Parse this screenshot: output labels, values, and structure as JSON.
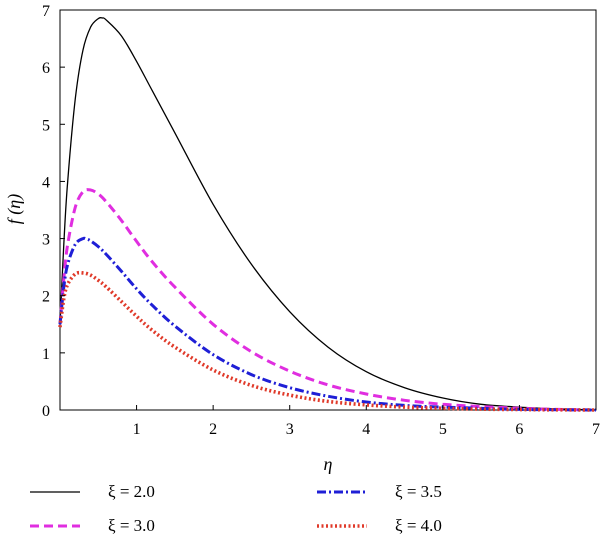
{
  "chart_data": {
    "type": "line",
    "title": "",
    "xlabel": "η",
    "ylabel": "f (η)",
    "xlim": [
      0,
      7
    ],
    "ylim": [
      0,
      7
    ],
    "xticks": [
      1,
      2,
      3,
      4,
      5,
      6,
      7
    ],
    "xtick_labels": [
      "1",
      "2",
      "3",
      "4",
      "5",
      "6",
      "7"
    ],
    "yticks": [
      0,
      1,
      2,
      3,
      4,
      5,
      6,
      7
    ],
    "ytick_labels": [
      "0",
      "1",
      "2",
      "3",
      "4",
      "5",
      "6",
      "7"
    ],
    "grid": false,
    "legend_position": "bottom",
    "series": [
      {
        "name": "ξ = 2.0",
        "color": "#000000",
        "style": "solid",
        "x": [
          0.0,
          0.05,
          0.1,
          0.2,
          0.3,
          0.4,
          0.5,
          0.55,
          0.6,
          0.8,
          1.0,
          1.2,
          1.5,
          2.0,
          2.5,
          3.0,
          3.5,
          4.0,
          4.5,
          5.0,
          5.5,
          6.0,
          6.5,
          7.0
        ],
        "y": [
          1.5,
          2.9,
          4.0,
          5.45,
          6.3,
          6.7,
          6.85,
          6.86,
          6.83,
          6.55,
          6.1,
          5.6,
          4.85,
          3.6,
          2.55,
          1.72,
          1.1,
          0.67,
          0.39,
          0.21,
          0.1,
          0.05,
          0.02,
          0.0
        ]
      },
      {
        "name": "ξ = 3.0",
        "color": "#e02ee0",
        "style": "dashed",
        "x": [
          0.0,
          0.05,
          0.1,
          0.2,
          0.3,
          0.4,
          0.5,
          0.6,
          0.8,
          1.0,
          1.2,
          1.5,
          2.0,
          2.5,
          3.0,
          3.5,
          4.0,
          4.5,
          5.0,
          5.5,
          6.0,
          6.5,
          7.0
        ],
        "y": [
          1.5,
          2.3,
          2.9,
          3.55,
          3.82,
          3.85,
          3.78,
          3.65,
          3.32,
          2.95,
          2.6,
          2.15,
          1.5,
          1.02,
          0.68,
          0.44,
          0.28,
          0.17,
          0.1,
          0.06,
          0.03,
          0.01,
          0.0
        ]
      },
      {
        "name": "ξ = 3.5",
        "color": "#1f1fd6",
        "style": "dashdot",
        "x": [
          0.0,
          0.05,
          0.1,
          0.2,
          0.3,
          0.35,
          0.4,
          0.5,
          0.6,
          0.8,
          1.0,
          1.2,
          1.5,
          2.0,
          2.5,
          3.0,
          3.5,
          4.0,
          4.5,
          5.0,
          5.5,
          6.0,
          6.5,
          7.0
        ],
        "y": [
          1.5,
          2.15,
          2.55,
          2.9,
          3.0,
          2.99,
          2.96,
          2.86,
          2.73,
          2.43,
          2.12,
          1.84,
          1.47,
          0.97,
          0.62,
          0.39,
          0.24,
          0.14,
          0.08,
          0.05,
          0.03,
          0.01,
          0.005,
          0.0
        ]
      },
      {
        "name": "ξ = 4.0",
        "color": "#e03a2a",
        "style": "dotted",
        "x": [
          0.0,
          0.05,
          0.1,
          0.2,
          0.3,
          0.4,
          0.5,
          0.6,
          0.8,
          1.0,
          1.2,
          1.5,
          2.0,
          2.5,
          3.0,
          3.5,
          4.0,
          4.5,
          5.0,
          5.5,
          6.0,
          6.5,
          7.0
        ],
        "y": [
          1.45,
          1.95,
          2.2,
          2.38,
          2.4,
          2.36,
          2.27,
          2.16,
          1.9,
          1.64,
          1.4,
          1.1,
          0.7,
          0.43,
          0.26,
          0.15,
          0.09,
          0.05,
          0.03,
          0.015,
          0.008,
          0.003,
          0.0
        ]
      }
    ]
  }
}
